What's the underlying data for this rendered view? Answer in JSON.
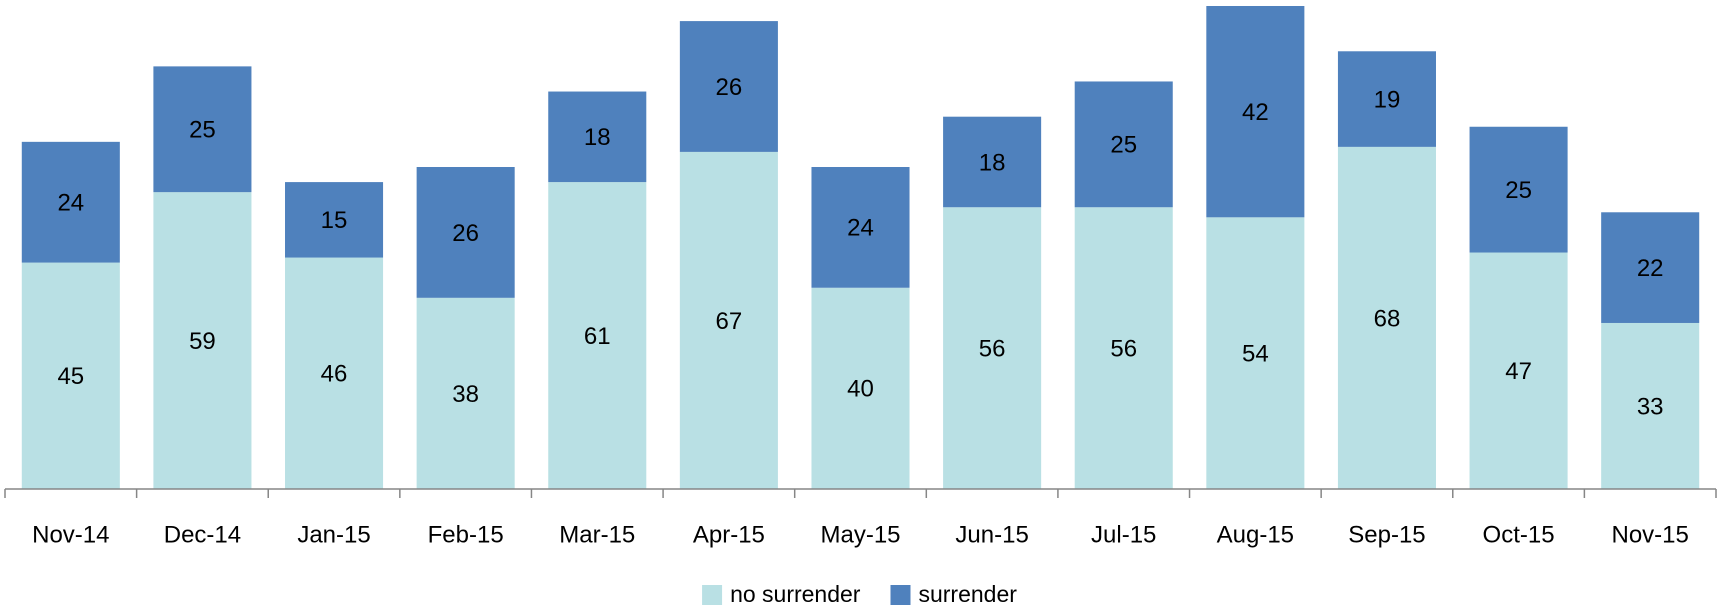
{
  "chart_data": {
    "type": "stacked_bar",
    "categories": [
      "Nov-14",
      "Dec-14",
      "Jan-15",
      "Feb-15",
      "Mar-15",
      "Apr-15",
      "May-15",
      "Jun-15",
      "Jul-15",
      "Aug-15",
      "Sep-15",
      "Oct-15",
      "Nov-15"
    ],
    "series": [
      {
        "name": "no surrender",
        "color": "#b9e0e4",
        "values": [
          45,
          59,
          46,
          38,
          61,
          67,
          40,
          56,
          56,
          54,
          68,
          47,
          33
        ]
      },
      {
        "name": "surrender",
        "color": "#4f81bd",
        "values": [
          24,
          25,
          15,
          26,
          18,
          26,
          24,
          18,
          25,
          42,
          19,
          25,
          22
        ]
      }
    ],
    "ylim": [
      0,
      96
    ],
    "legend": "bottom"
  }
}
